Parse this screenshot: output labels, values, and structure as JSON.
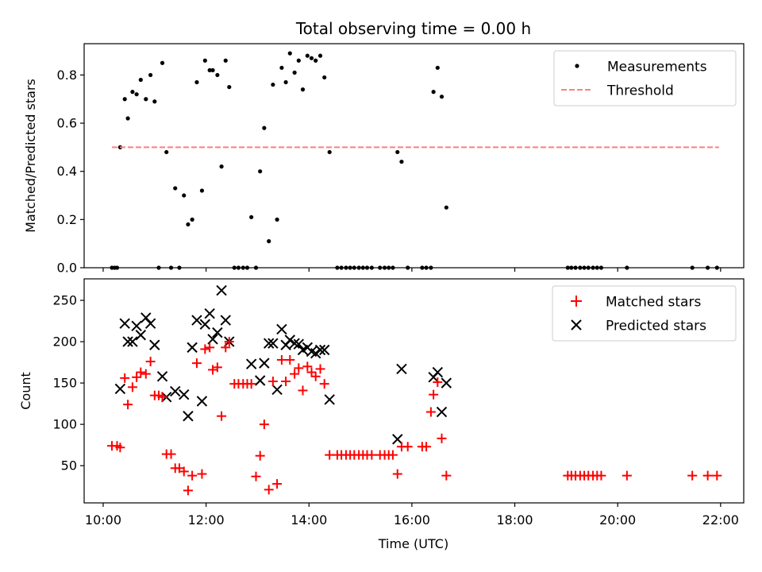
{
  "colors": {
    "measurement": "#000000",
    "threshold": "#ff7f7f",
    "matched": "#ff0000",
    "predicted": "#000000"
  },
  "chart_data": [
    {
      "type": "scatter",
      "title": "Total observing time = 0.00 h",
      "xlabel": "",
      "ylabel": "Matched/Predicted stars",
      "xlim": [
        9.63,
        22.45
      ],
      "ylim": [
        0,
        0.93
      ],
      "yticks": [
        0.0,
        0.2,
        0.4,
        0.6,
        0.8
      ],
      "ytick_labels": [
        "0.0",
        "0.2",
        "0.4",
        "0.6",
        "0.8"
      ],
      "xticks": [
        10,
        12,
        14,
        16,
        18,
        20,
        22
      ],
      "legend": {
        "position": "top-right",
        "entries": [
          "Measurements",
          "Threshold"
        ]
      },
      "threshold": {
        "name": "Threshold",
        "y": 0.5,
        "x": [
          10.17,
          21.97
        ]
      },
      "series": [
        {
          "name": "Measurements",
          "points": [
            [
              10.17,
              0
            ],
            [
              10.22,
              0
            ],
            [
              10.27,
              0
            ],
            [
              10.33,
              0.5
            ],
            [
              10.42,
              0.7
            ],
            [
              10.48,
              0.62
            ],
            [
              10.57,
              0.73
            ],
            [
              10.65,
              0.72
            ],
            [
              10.73,
              0.78
            ],
            [
              10.83,
              0.7
            ],
            [
              10.92,
              0.8
            ],
            [
              11.0,
              0.69
            ],
            [
              11.08,
              0
            ],
            [
              11.15,
              0.85
            ],
            [
              11.23,
              0.48
            ],
            [
              11.32,
              0
            ],
            [
              11.4,
              0.33
            ],
            [
              11.48,
              0
            ],
            [
              11.57,
              0.3
            ],
            [
              11.65,
              0.18
            ],
            [
              11.73,
              0.2
            ],
            [
              11.82,
              0.77
            ],
            [
              11.92,
              0.32
            ],
            [
              11.98,
              0.86
            ],
            [
              12.07,
              0.82
            ],
            [
              12.13,
              0.82
            ],
            [
              12.22,
              0.8
            ],
            [
              12.3,
              0.42
            ],
            [
              12.38,
              0.86
            ],
            [
              12.45,
              0.75
            ],
            [
              12.55,
              0
            ],
            [
              12.63,
              0
            ],
            [
              12.72,
              0
            ],
            [
              12.8,
              0
            ],
            [
              12.88,
              0.21
            ],
            [
              12.97,
              0
            ],
            [
              13.05,
              0.4
            ],
            [
              13.13,
              0.58
            ],
            [
              13.22,
              0.11
            ],
            [
              13.3,
              0.76
            ],
            [
              13.38,
              0.2
            ],
            [
              13.47,
              0.83
            ],
            [
              13.55,
              0.77
            ],
            [
              13.63,
              0.89
            ],
            [
              13.72,
              0.81
            ],
            [
              13.8,
              0.86
            ],
            [
              13.88,
              0.74
            ],
            [
              13.97,
              0.88
            ],
            [
              14.05,
              0.87
            ],
            [
              14.13,
              0.86
            ],
            [
              14.22,
              0.88
            ],
            [
              14.3,
              0.79
            ],
            [
              14.4,
              0.48
            ],
            [
              14.55,
              0
            ],
            [
              14.63,
              0
            ],
            [
              14.72,
              0
            ],
            [
              14.8,
              0
            ],
            [
              14.88,
              0
            ],
            [
              14.97,
              0
            ],
            [
              15.05,
              0
            ],
            [
              15.13,
              0
            ],
            [
              15.22,
              0
            ],
            [
              15.38,
              0
            ],
            [
              15.47,
              0
            ],
            [
              15.55,
              0
            ],
            [
              15.63,
              0
            ],
            [
              15.72,
              0.48
            ],
            [
              15.8,
              0.44
            ],
            [
              15.92,
              0
            ],
            [
              16.2,
              0
            ],
            [
              16.28,
              0
            ],
            [
              16.37,
              0
            ],
            [
              16.42,
              0.73
            ],
            [
              16.5,
              0.83
            ],
            [
              16.58,
              0.71
            ],
            [
              16.67,
              0.25
            ],
            [
              19.03,
              0
            ],
            [
              19.1,
              0
            ],
            [
              19.18,
              0
            ],
            [
              19.27,
              0
            ],
            [
              19.35,
              0
            ],
            [
              19.43,
              0
            ],
            [
              19.52,
              0
            ],
            [
              19.6,
              0
            ],
            [
              19.68,
              0
            ],
            [
              20.18,
              0
            ],
            [
              21.45,
              0
            ],
            [
              21.75,
              0
            ],
            [
              21.93,
              0
            ]
          ]
        }
      ]
    },
    {
      "type": "scatter",
      "title": "",
      "xlabel": "Time (UTC)",
      "ylabel": "Count",
      "xlim": [
        9.63,
        22.45
      ],
      "ylim": [
        5,
        276
      ],
      "yticks": [
        50,
        100,
        150,
        200,
        250
      ],
      "xticks": [
        10,
        12,
        14,
        16,
        18,
        20,
        22
      ],
      "xtick_labels": [
        "10:00",
        "12:00",
        "14:00",
        "16:00",
        "18:00",
        "20:00",
        "22:00"
      ],
      "legend": {
        "position": "top-right",
        "entries": [
          "Matched stars",
          "Predicted stars"
        ]
      },
      "series": [
        {
          "name": "Matched stars",
          "points": [
            [
              10.17,
              74
            ],
            [
              10.27,
              74
            ],
            [
              10.33,
              72
            ],
            [
              10.42,
              156
            ],
            [
              10.48,
              124
            ],
            [
              10.57,
              145
            ],
            [
              10.65,
              157
            ],
            [
              10.73,
              163
            ],
            [
              10.83,
              161
            ],
            [
              10.92,
              176
            ],
            [
              11.0,
              135
            ],
            [
              11.08,
              135
            ],
            [
              11.15,
              133
            ],
            [
              11.23,
              64
            ],
            [
              11.32,
              64
            ],
            [
              11.4,
              47
            ],
            [
              11.48,
              47
            ],
            [
              11.57,
              43
            ],
            [
              11.65,
              20
            ],
            [
              11.73,
              38
            ],
            [
              11.82,
              174
            ],
            [
              11.92,
              40
            ],
            [
              11.98,
              191
            ],
            [
              12.07,
              193
            ],
            [
              12.13,
              166
            ],
            [
              12.22,
              169
            ],
            [
              12.3,
              110
            ],
            [
              12.38,
              193
            ],
            [
              12.45,
              200
            ],
            [
              12.55,
              149
            ],
            [
              12.63,
              149
            ],
            [
              12.72,
              149
            ],
            [
              12.8,
              149
            ],
            [
              12.88,
              149
            ],
            [
              12.97,
              37
            ],
            [
              13.05,
              62
            ],
            [
              13.13,
              100
            ],
            [
              13.22,
              21
            ],
            [
              13.3,
              152
            ],
            [
              13.38,
              28
            ],
            [
              13.47,
              178
            ],
            [
              13.55,
              152
            ],
            [
              13.63,
              178
            ],
            [
              13.72,
              161
            ],
            [
              13.8,
              168
            ],
            [
              13.88,
              141
            ],
            [
              13.97,
              170
            ],
            [
              14.05,
              163
            ],
            [
              14.13,
              158
            ],
            [
              14.22,
              167
            ],
            [
              14.3,
              149
            ],
            [
              14.4,
              63
            ],
            [
              14.55,
              63
            ],
            [
              14.63,
              63
            ],
            [
              14.72,
              63
            ],
            [
              14.8,
              63
            ],
            [
              14.88,
              63
            ],
            [
              14.97,
              63
            ],
            [
              15.05,
              63
            ],
            [
              15.13,
              63
            ],
            [
              15.22,
              63
            ],
            [
              15.38,
              63
            ],
            [
              15.47,
              63
            ],
            [
              15.55,
              63
            ],
            [
              15.63,
              63
            ],
            [
              15.72,
              40
            ],
            [
              15.8,
              73
            ],
            [
              15.92,
              73
            ],
            [
              16.2,
              73
            ],
            [
              16.28,
              73
            ],
            [
              16.37,
              115
            ],
            [
              16.42,
              136
            ],
            [
              16.5,
              151
            ],
            [
              16.58,
              83
            ],
            [
              16.67,
              38
            ],
            [
              19.03,
              38
            ],
            [
              19.1,
              38
            ],
            [
              19.18,
              38
            ],
            [
              19.27,
              38
            ],
            [
              19.35,
              38
            ],
            [
              19.43,
              38
            ],
            [
              19.52,
              38
            ],
            [
              19.6,
              38
            ],
            [
              19.68,
              38
            ],
            [
              20.18,
              38
            ],
            [
              21.45,
              38
            ],
            [
              21.75,
              38
            ],
            [
              21.93,
              38
            ]
          ]
        },
        {
          "name": "Predicted stars",
          "points": [
            [
              10.33,
              143
            ],
            [
              10.42,
              222
            ],
            [
              10.48,
              200
            ],
            [
              10.57,
              200
            ],
            [
              10.65,
              219
            ],
            [
              10.73,
              208
            ],
            [
              10.83,
              229
            ],
            [
              10.92,
              222
            ],
            [
              11.0,
              196
            ],
            [
              11.15,
              158
            ],
            [
              11.23,
              133
            ],
            [
              11.4,
              140
            ],
            [
              11.57,
              136
            ],
            [
              11.65,
              110
            ],
            [
              11.73,
              193
            ],
            [
              11.82,
              226
            ],
            [
              11.92,
              128
            ],
            [
              11.98,
              221
            ],
            [
              12.07,
              234
            ],
            [
              12.13,
              203
            ],
            [
              12.22,
              211
            ],
            [
              12.3,
              262
            ],
            [
              12.38,
              226
            ],
            [
              12.45,
              200
            ],
            [
              12.88,
              173
            ],
            [
              13.05,
              153
            ],
            [
              13.13,
              174
            ],
            [
              13.22,
              198
            ],
            [
              13.3,
              198
            ],
            [
              13.38,
              142
            ],
            [
              13.47,
              215
            ],
            [
              13.55,
              196
            ],
            [
              13.63,
              202
            ],
            [
              13.72,
              198
            ],
            [
              13.8,
              197
            ],
            [
              13.88,
              190
            ],
            [
              13.97,
              193
            ],
            [
              14.05,
              188
            ],
            [
              14.13,
              186
            ],
            [
              14.22,
              190
            ],
            [
              14.3,
              190
            ],
            [
              14.4,
              130
            ],
            [
              15.72,
              82
            ],
            [
              15.8,
              167
            ],
            [
              16.42,
              157
            ],
            [
              16.5,
              163
            ],
            [
              16.58,
              115
            ],
            [
              16.67,
              150
            ]
          ]
        }
      ]
    }
  ]
}
